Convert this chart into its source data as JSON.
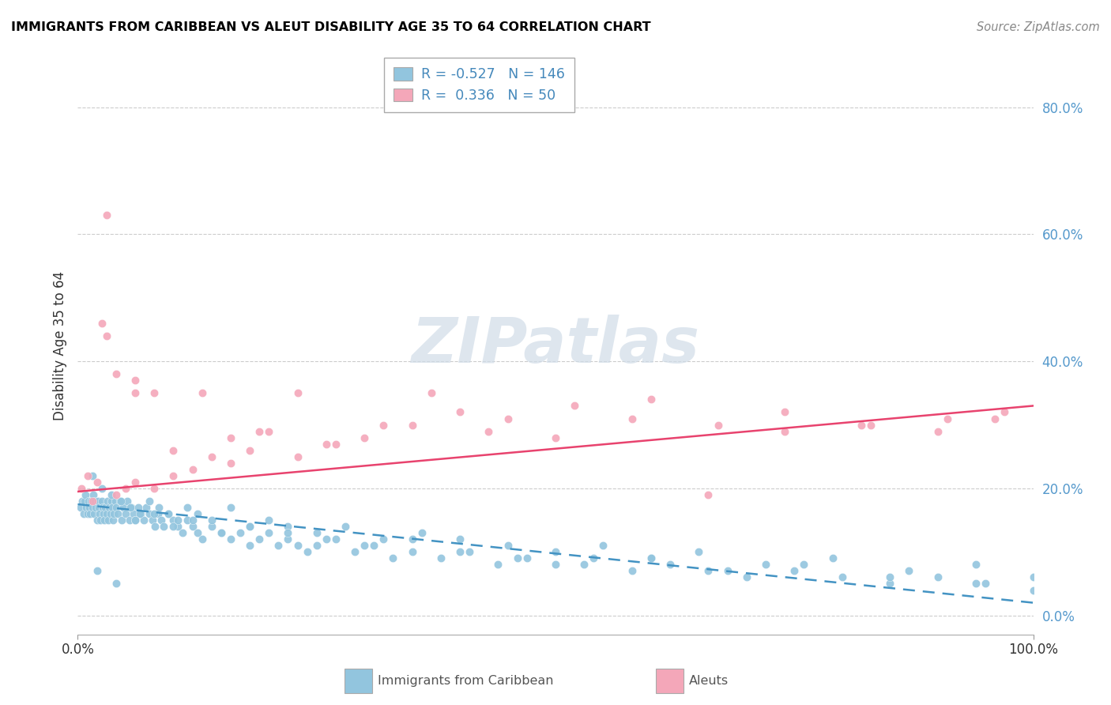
{
  "title": "IMMIGRANTS FROM CARIBBEAN VS ALEUT DISABILITY AGE 35 TO 64 CORRELATION CHART",
  "source": "Source: ZipAtlas.com",
  "ylabel": "Disability Age 35 to 64",
  "legend_label1": "Immigrants from Caribbean",
  "legend_label2": "Aleuts",
  "r1": -0.527,
  "n1": 146,
  "r2": 0.336,
  "n2": 50,
  "xlim": [
    0.0,
    100.0
  ],
  "ylim": [
    -3.0,
    88.0
  ],
  "yticks": [
    0.0,
    20.0,
    40.0,
    60.0,
    80.0
  ],
  "color_blue": "#92c5de",
  "color_pink": "#f4a7b9",
  "color_blue_line": "#4393c3",
  "color_pink_line": "#e8436e",
  "watermark_color": "#d0dce8",
  "watermark_text": "ZIPatlas",
  "blue_x": [
    0.3,
    0.5,
    0.6,
    0.7,
    0.8,
    0.9,
    1.0,
    1.1,
    1.2,
    1.3,
    1.4,
    1.5,
    1.6,
    1.7,
    1.8,
    1.9,
    2.0,
    2.1,
    2.2,
    2.3,
    2.4,
    2.5,
    2.6,
    2.7,
    2.8,
    2.9,
    3.0,
    3.1,
    3.2,
    3.3,
    3.4,
    3.5,
    3.6,
    3.7,
    3.8,
    3.9,
    4.0,
    4.2,
    4.4,
    4.6,
    4.8,
    5.0,
    5.2,
    5.4,
    5.6,
    5.8,
    6.0,
    6.3,
    6.6,
    6.9,
    7.2,
    7.5,
    7.8,
    8.1,
    8.4,
    8.7,
    9.0,
    9.5,
    10.0,
    10.5,
    11.0,
    11.5,
    12.0,
    12.5,
    13.0,
    14.0,
    15.0,
    16.0,
    17.0,
    18.0,
    19.0,
    20.0,
    21.0,
    22.0,
    23.0,
    24.0,
    25.0,
    27.0,
    29.0,
    31.0,
    33.0,
    35.0,
    38.0,
    41.0,
    44.0,
    47.0,
    50.0,
    54.0,
    58.0,
    62.0,
    66.0,
    70.0,
    75.0,
    80.0,
    85.0,
    90.0,
    95.0,
    100.0,
    1.5,
    2.5,
    3.5,
    4.5,
    5.5,
    6.5,
    7.5,
    8.5,
    9.5,
    10.5,
    11.5,
    12.5,
    14.0,
    16.0,
    18.0,
    20.0,
    22.0,
    25.0,
    28.0,
    32.0,
    36.0,
    40.0,
    45.0,
    50.0,
    55.0,
    60.0,
    65.0,
    72.0,
    79.0,
    87.0,
    94.0,
    100.0,
    2.0,
    4.0,
    6.0,
    8.0,
    10.0,
    12.0,
    15.0,
    18.0,
    22.0,
    26.0,
    30.0,
    35.0,
    40.0,
    46.0,
    53.0,
    60.0,
    68.0,
    76.0,
    85.0,
    94.0
  ],
  "blue_y": [
    17,
    18,
    16,
    18,
    19,
    17,
    16,
    18,
    17,
    16,
    18,
    17,
    19,
    16,
    18,
    17,
    15,
    18,
    17,
    16,
    15,
    18,
    17,
    16,
    15,
    17,
    16,
    18,
    15,
    17,
    16,
    18,
    17,
    15,
    16,
    18,
    17,
    16,
    18,
    15,
    17,
    16,
    18,
    15,
    17,
    16,
    15,
    17,
    16,
    15,
    17,
    16,
    15,
    14,
    16,
    15,
    14,
    16,
    15,
    14,
    13,
    15,
    14,
    13,
    12,
    14,
    13,
    12,
    13,
    11,
    12,
    13,
    11,
    12,
    11,
    10,
    11,
    12,
    10,
    11,
    9,
    10,
    9,
    10,
    8,
    9,
    8,
    9,
    7,
    8,
    7,
    6,
    7,
    6,
    5,
    6,
    5,
    4,
    22,
    20,
    19,
    18,
    17,
    16,
    18,
    17,
    16,
    15,
    17,
    16,
    15,
    17,
    14,
    15,
    14,
    13,
    14,
    12,
    13,
    12,
    11,
    10,
    11,
    9,
    10,
    8,
    9,
    7,
    8,
    6,
    7,
    5,
    15,
    16,
    14,
    15,
    13,
    14,
    13,
    12,
    11,
    12,
    10,
    9,
    8,
    9,
    7,
    8,
    6,
    5
  ],
  "pink_x": [
    0.4,
    1.0,
    1.5,
    2.0,
    3.0,
    4.0,
    5.0,
    6.0,
    8.0,
    10.0,
    12.0,
    14.0,
    16.0,
    18.0,
    20.0,
    23.0,
    26.0,
    30.0,
    35.0,
    40.0,
    45.0,
    52.0,
    60.0,
    67.0,
    74.0,
    82.0,
    90.0,
    96.0,
    2.5,
    4.0,
    6.0,
    8.0,
    10.0,
    13.0,
    16.0,
    19.0,
    23.0,
    27.0,
    32.0,
    37.0,
    43.0,
    50.0,
    58.0,
    66.0,
    74.0,
    83.0,
    91.0,
    97.0,
    3.0,
    6.0
  ],
  "pink_y": [
    20,
    22,
    18,
    21,
    44,
    19,
    20,
    21,
    20,
    22,
    23,
    25,
    24,
    26,
    29,
    25,
    27,
    28,
    30,
    32,
    31,
    33,
    34,
    30,
    32,
    30,
    29,
    31,
    46,
    38,
    37,
    35,
    26,
    35,
    28,
    29,
    35,
    27,
    30,
    35,
    29,
    28,
    31,
    19,
    29,
    30,
    31,
    32,
    63,
    35
  ]
}
